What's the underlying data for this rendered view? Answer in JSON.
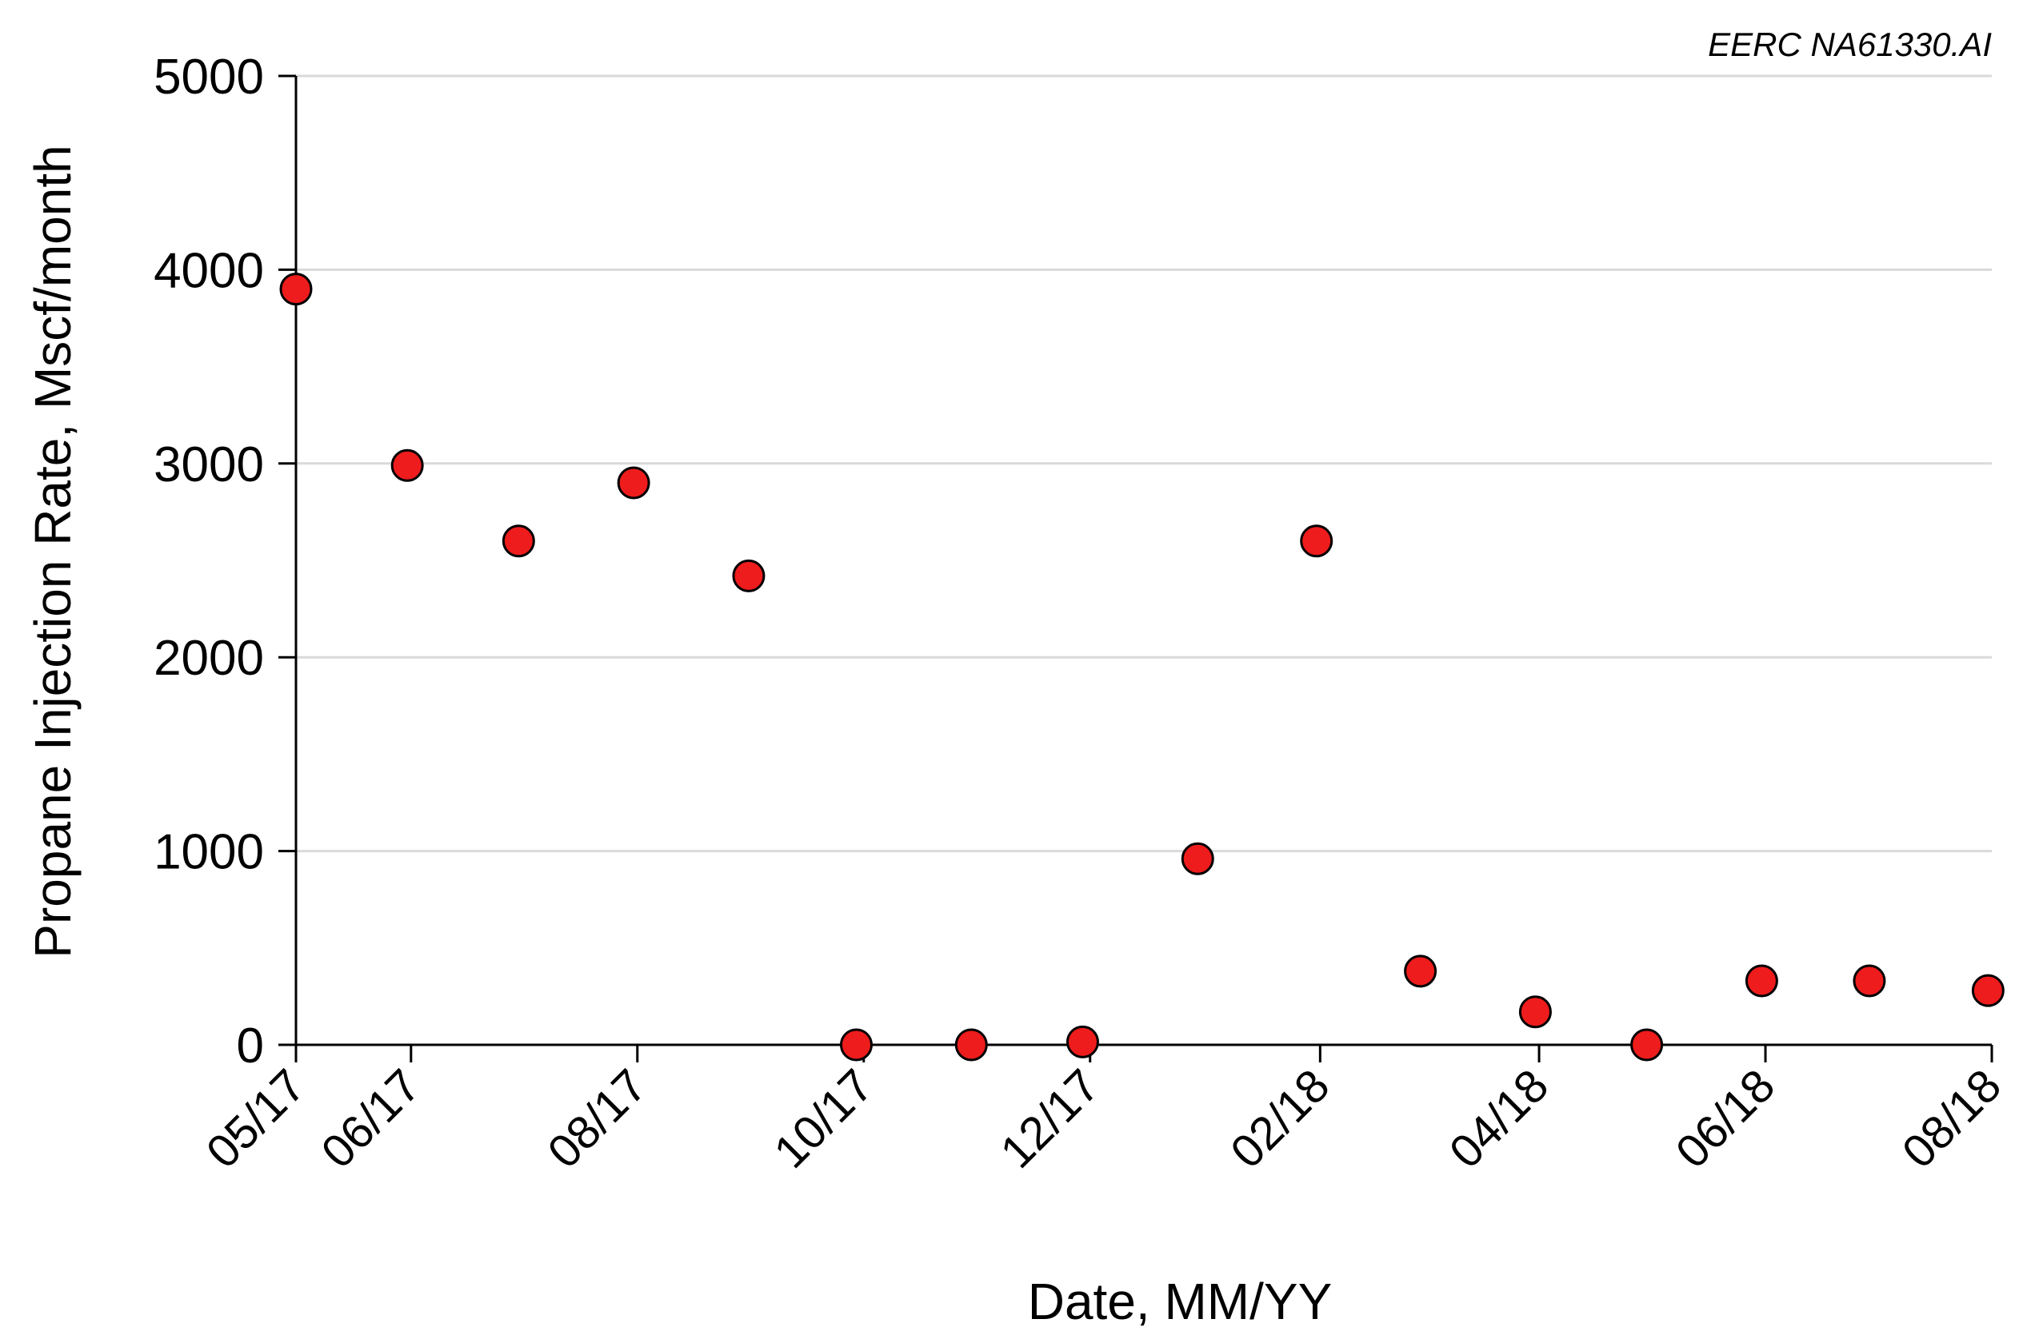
{
  "chart_data": {
    "type": "scatter",
    "title": "",
    "credit": "EERC NA61330.AI",
    "xlabel": "Date, MM/YY",
    "ylabel": "Propane Injection Rate, Mscf/month",
    "ylim": [
      0,
      5000
    ],
    "yticks": [
      "0",
      "1000",
      "2000",
      "3000",
      "4000",
      "5000"
    ],
    "xlim": [
      "2017-05-01",
      "2018-08-01"
    ],
    "xticks": [
      {
        "date": "2017-05-01",
        "label": "05/17"
      },
      {
        "date": "2017-06-01",
        "label": "06/17"
      },
      {
        "date": "2017-08-01",
        "label": "08/17"
      },
      {
        "date": "2017-10-01",
        "label": "10/17"
      },
      {
        "date": "2017-12-01",
        "label": "12/17"
      },
      {
        "date": "2018-02-01",
        "label": "02/18"
      },
      {
        "date": "2018-04-01",
        "label": "04/18"
      },
      {
        "date": "2018-06-01",
        "label": "06/18"
      },
      {
        "date": "2018-08-01",
        "label": "08/18"
      }
    ],
    "grid": "horizontal",
    "marker_color": "#ee1c1c",
    "points": [
      {
        "x": "2017-05-01",
        "y": 3900
      },
      {
        "x": "2017-05-31",
        "y": 2990
      },
      {
        "x": "2017-06-30",
        "y": 2600
      },
      {
        "x": "2017-07-31",
        "y": 2900
      },
      {
        "x": "2017-08-31",
        "y": 2420
      },
      {
        "x": "2017-09-29",
        "y": 0
      },
      {
        "x": "2017-10-30",
        "y": 0
      },
      {
        "x": "2017-11-29",
        "y": 15
      },
      {
        "x": "2017-12-30",
        "y": 960
      },
      {
        "x": "2018-01-31",
        "y": 2600
      },
      {
        "x": "2018-02-28",
        "y": 380
      },
      {
        "x": "2018-03-31",
        "y": 170
      },
      {
        "x": "2018-04-30",
        "y": 0
      },
      {
        "x": "2018-05-31",
        "y": 330
      },
      {
        "x": "2018-06-29",
        "y": 330
      },
      {
        "x": "2018-07-31",
        "y": 280
      }
    ]
  }
}
